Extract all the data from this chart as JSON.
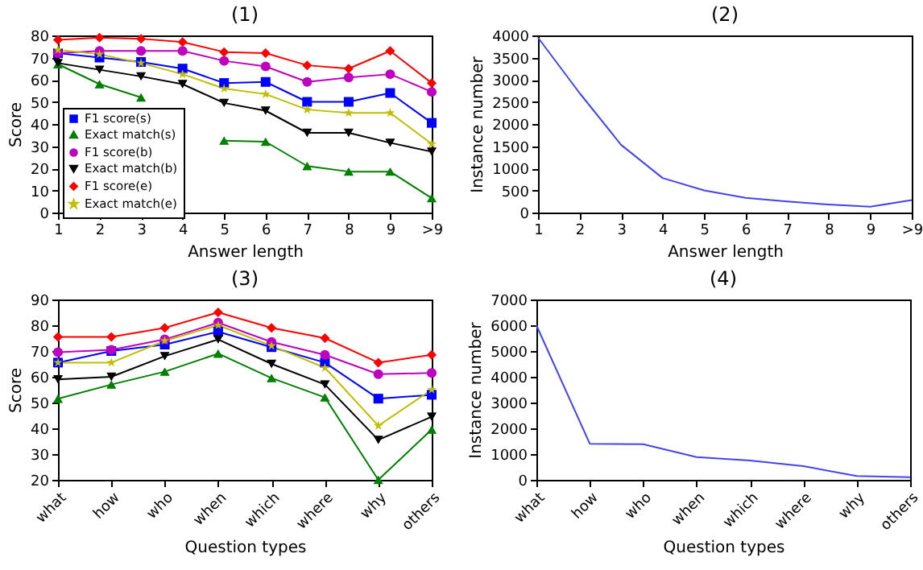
{
  "chart_data": [
    {
      "type": "line",
      "title": "(1)",
      "xlabel": "Answer length",
      "ylabel": "Score",
      "categories": [
        "1",
        "2",
        "3",
        "4",
        "5",
        "6",
        "7",
        "8",
        "9",
        ">9"
      ],
      "ylim": [
        0,
        80
      ],
      "yticks": [
        0,
        10,
        20,
        30,
        40,
        50,
        60,
        70,
        80
      ],
      "legend": "bottom left",
      "series": [
        {
          "name": "F1 score(s)",
          "color": "#0000ff",
          "marker": "square",
          "values": [
            72,
            70,
            68,
            65,
            58.5,
            59,
            50,
            50,
            54,
            40.5
          ]
        },
        {
          "name": "Exact match(s)",
          "color": "#008000",
          "marker": "triangle",
          "values": [
            67,
            58,
            52,
            null,
            32.5,
            32,
            21,
            18.5,
            18.5,
            6.5
          ]
        },
        {
          "name": "F1 score(b)",
          "color": "#bf00bf",
          "marker": "circle",
          "values": [
            72,
            73,
            73,
            73,
            68.5,
            66,
            59,
            61,
            62.5,
            54.5
          ]
        },
        {
          "name": "Exact match(b)",
          "color": "#000000",
          "marker": "triangle-down",
          "values": [
            67.5,
            64.5,
            61.5,
            58,
            49.5,
            46,
            36,
            36,
            31.5,
            27.5
          ]
        },
        {
          "name": "F1 score(e)",
          "color": "#ff0000",
          "marker": "diamond",
          "values": [
            78,
            79,
            78.5,
            77,
            72.5,
            72,
            66.5,
            65,
            73,
            58.5
          ]
        },
        {
          "name": "Exact match(e)",
          "color": "#bfbf00",
          "marker": "star",
          "values": [
            73.5,
            71.5,
            67.5,
            62.5,
            56,
            53.5,
            46.5,
            45,
            45,
            31
          ]
        }
      ]
    },
    {
      "type": "line",
      "title": "(2)",
      "xlabel": "Answer length",
      "ylabel": "Instance number",
      "categories": [
        "1",
        "2",
        "3",
        "4",
        "5",
        "6",
        "7",
        "8",
        "9",
        ">9"
      ],
      "ylim": [
        0,
        4000
      ],
      "yticks": [
        0,
        500,
        1000,
        1500,
        2000,
        2500,
        3000,
        3500,
        4000
      ],
      "series": [
        {
          "color": "#4444ee",
          "values": [
            3950,
            2700,
            1530,
            780,
            500,
            330,
            250,
            180,
            130,
            280
          ]
        }
      ]
    },
    {
      "type": "line",
      "title": "(3)",
      "xlabel": "Question types",
      "ylabel": "Score",
      "categories": [
        "what",
        "how",
        "who",
        "when",
        "which",
        "where",
        "why",
        "others"
      ],
      "ylim": [
        20,
        90
      ],
      "yticks": [
        20,
        30,
        40,
        50,
        60,
        70,
        80,
        90
      ],
      "series": [
        {
          "color": "#0000ff",
          "marker": "square",
          "values": [
            65.5,
            70,
            72.5,
            77.5,
            71.5,
            65.5,
            51.5,
            53
          ]
        },
        {
          "color": "#008000",
          "marker": "triangle",
          "values": [
            51.5,
            57,
            62,
            69,
            59.5,
            52,
            20,
            39.5
          ]
        },
        {
          "color": "#bf00bf",
          "marker": "circle",
          "values": [
            69.5,
            70.5,
            74.5,
            81,
            73.5,
            68.5,
            61,
            61.5
          ]
        },
        {
          "color": "#000000",
          "marker": "triangle-down",
          "values": [
            59,
            60,
            68,
            74.5,
            65,
            57,
            35.5,
            44.5
          ]
        },
        {
          "color": "#ff0000",
          "marker": "diamond",
          "values": [
            75.5,
            75.5,
            79,
            85,
            79,
            75,
            65.5,
            68.5
          ]
        },
        {
          "color": "#bfbf00",
          "marker": "star",
          "values": [
            65.5,
            65.5,
            74,
            80,
            72,
            63.5,
            41,
            55
          ]
        }
      ]
    },
    {
      "type": "line",
      "title": "(4)",
      "xlabel": "Question types",
      "ylabel": "Instance number",
      "categories": [
        "what",
        "how",
        "who",
        "when",
        "which",
        "where",
        "why",
        "others"
      ],
      "ylim": [
        0,
        7000
      ],
      "yticks": [
        0,
        1000,
        2000,
        3000,
        4000,
        5000,
        6000,
        7000
      ],
      "series": [
        {
          "color": "#4444ee",
          "values": [
            6000,
            1400,
            1380,
            880,
            750,
            530,
            150,
            100
          ]
        }
      ]
    }
  ]
}
